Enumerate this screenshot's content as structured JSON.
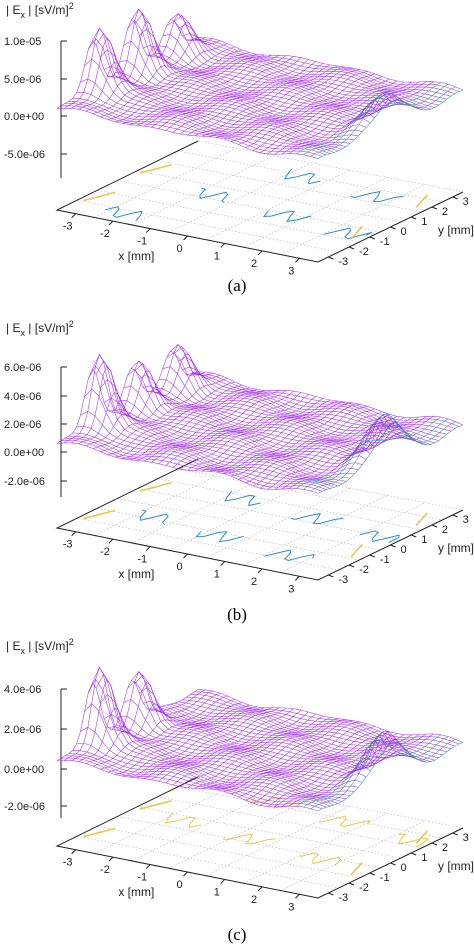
{
  "chart_data": [
    {
      "type": "surface",
      "caption": "(a)",
      "zlabel": "| E_x | [sV/m]^2",
      "xlabel": "x [mm]",
      "ylabel": "y [mm]",
      "z_ticks": [
        "1.0e-05",
        "5.0e-06",
        "0.0e+00",
        "-5.0e-06"
      ],
      "x_ticks": [
        "-3",
        "-2",
        "-1",
        "0",
        "1",
        "2",
        "3"
      ],
      "y_ticks": [
        "-3",
        "-2",
        "-1",
        "0",
        "1",
        "2",
        "3"
      ],
      "xlim": [
        -3.5,
        3.5
      ],
      "ylim": [
        -3.5,
        3.5
      ],
      "zlim": [
        -5e-06,
        1e-05
      ],
      "peak_values": [
        1e-05,
        1e-05,
        6e-06,
        6e-06
      ],
      "colors": {
        "surface": "#a020f0",
        "side": "#1a9e77",
        "contour": "#2f8ec8",
        "contour_low": "#e8c84a"
      }
    },
    {
      "type": "surface",
      "caption": "(b)",
      "zlabel": "| E_x | [sV/m]^2",
      "xlabel": "x [mm]",
      "ylabel": "y [mm]",
      "z_ticks": [
        "6.0e-06",
        "4.0e-06",
        "2.0e-06",
        "0.0e+00",
        "-2.0e-06"
      ],
      "x_ticks": [
        "-3",
        "-2",
        "-1",
        "0",
        "1",
        "2",
        "3"
      ],
      "y_ticks": [
        "-3",
        "-2",
        "-1",
        "0",
        "1",
        "2",
        "3"
      ],
      "xlim": [
        -3.5,
        3.5
      ],
      "ylim": [
        -3.5,
        3.5
      ],
      "zlim": [
        -2e-06,
        6e-06
      ],
      "peak_values": [
        6e-06,
        4e-06,
        3.5e-06,
        4.5e-06
      ],
      "colors": {
        "surface": "#a020f0",
        "side": "#1a9e77",
        "contour": "#2f8ec8",
        "contour_low": "#e8c84a"
      }
    },
    {
      "type": "surface",
      "caption": "(c)",
      "zlabel": "| E_x | [sV/m]^2",
      "xlabel": "x [mm]",
      "ylabel": "y [mm]",
      "z_ticks": [
        "4.0e-06",
        "2.0e-06",
        "0.0e+00",
        "-2.0e-06"
      ],
      "x_ticks": [
        "-3",
        "-2",
        "-1",
        "0",
        "1",
        "2",
        "3"
      ],
      "y_ticks": [
        "-3",
        "-2",
        "-1",
        "0",
        "1",
        "2",
        "3"
      ],
      "xlim": [
        -3.5,
        3.5
      ],
      "ylim": [
        -3.5,
        3.5
      ],
      "zlim": [
        -2e-06,
        4e-06
      ],
      "peak_values": [
        4.5e-06,
        3.2e-06
      ],
      "colors": {
        "surface": "#a020f0",
        "side": "#1a9e77",
        "contour": "#e8c84a",
        "contour_low": "#e8c84a"
      }
    }
  ]
}
